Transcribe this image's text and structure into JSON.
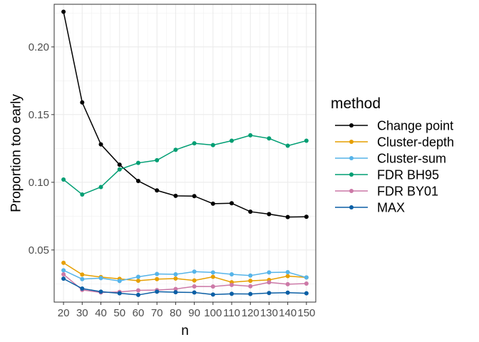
{
  "chart_data": {
    "type": "line",
    "xlabel": "n",
    "ylabel": "Proportion too early",
    "x": [
      20,
      30,
      40,
      50,
      60,
      70,
      80,
      90,
      100,
      110,
      120,
      130,
      140,
      150
    ],
    "x_tick_labels": [
      "20",
      "30",
      "40",
      "50",
      "60",
      "70",
      "80",
      "90",
      "100",
      "110",
      "120",
      "130",
      "140",
      "150"
    ],
    "xlim": [
      15,
      155
    ],
    "ylim": [
      0.0115,
      0.2315
    ],
    "y_ticks": [
      0.05,
      0.1,
      0.15,
      0.2
    ],
    "y_tick_labels": [
      "0.05",
      "0.10",
      "0.15",
      "0.20"
    ],
    "grid": true,
    "legend": {
      "title": "method",
      "position": "right"
    },
    "series": [
      {
        "name": "Change point",
        "color": "#000000",
        "values": [
          0.226,
          0.159,
          0.128,
          0.113,
          0.101,
          0.094,
          0.09,
          0.0898,
          0.0842,
          0.0845,
          0.0783,
          0.0765,
          0.0743,
          0.0745
        ]
      },
      {
        "name": "Cluster-depth",
        "color": "#E69F00",
        "values": [
          0.0405,
          0.0318,
          0.03,
          0.0287,
          0.0273,
          0.0285,
          0.0289,
          0.0275,
          0.0302,
          0.0262,
          0.0272,
          0.0279,
          0.0307,
          0.0297
        ]
      },
      {
        "name": "Cluster-sum",
        "color": "#56B4E9",
        "values": [
          0.035,
          0.0285,
          0.0292,
          0.0271,
          0.0302,
          0.0323,
          0.032,
          0.034,
          0.0334,
          0.032,
          0.0311,
          0.0334,
          0.0336,
          0.0297
        ]
      },
      {
        "name": "FDR BH95",
        "color": "#009E73",
        "values": [
          0.102,
          0.091,
          0.0965,
          0.1095,
          0.1143,
          0.1163,
          0.124,
          0.1288,
          0.1275,
          0.1307,
          0.1347,
          0.1324,
          0.127,
          0.1307
        ]
      },
      {
        "name": "FDR BY01",
        "color": "#CC79A7",
        "values": [
          0.032,
          0.0205,
          0.0186,
          0.019,
          0.0202,
          0.0204,
          0.0212,
          0.0231,
          0.023,
          0.0242,
          0.0232,
          0.0261,
          0.0247,
          0.0252
        ]
      },
      {
        "name": "MAX",
        "color": "#0B5FA5",
        "values": [
          0.0288,
          0.0215,
          0.0192,
          0.018,
          0.0168,
          0.0192,
          0.0188,
          0.0186,
          0.0171,
          0.0176,
          0.0175,
          0.0182,
          0.0185,
          0.018
        ]
      }
    ]
  }
}
